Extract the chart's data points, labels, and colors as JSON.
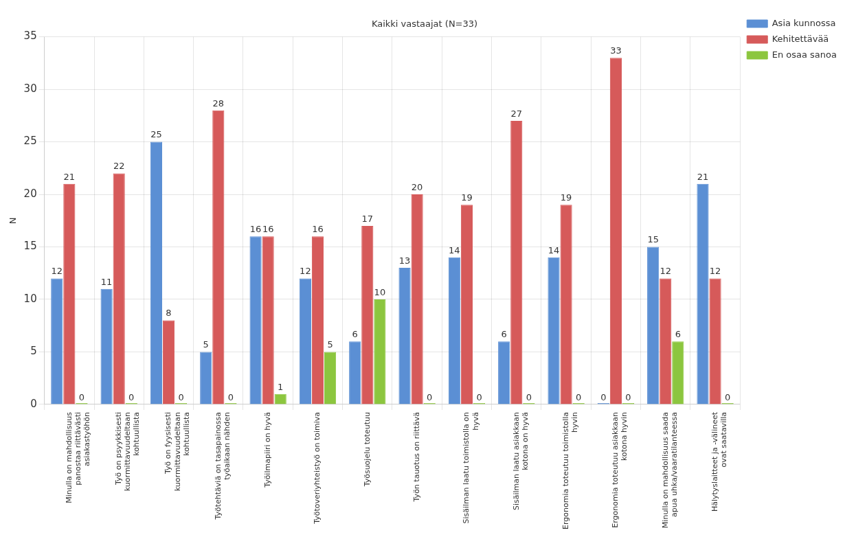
{
  "chart_data": {
    "type": "bar",
    "title": "Kaikki vastaajat (N=33)",
    "ylabel": "N",
    "categories": [
      "Minulla on mahdollisuus panostaa riittävästi asiakastyöhön",
      "Työ on psyykkisesti kuormittavuudeltaan kohtuullista",
      "Työ on fyysisesti kuormittavuudeltaan kohtuullista",
      "Työtehtäviä on tasapainossa työaikaan nähden",
      "Työilmapiiri on hyvä",
      "Työtoveriyhteistyö on toimiva",
      "Työsuojelu toteutuu",
      "Työn tauotus on riittävä",
      "Sisäilman laatu toimistolla on hyvä",
      "Sisäilman laatu asiakkaan kotona on hyvä",
      "Ergonomia toteutuu toimistolla hyvin",
      "Ergonomia toteutuu asiakkaan kotona hyvin",
      "Minulla on mahdollisuus saada apua uhka/vaaratilanteessa",
      "Hälytyslaitteet ja -välineet ovat saatavilla"
    ],
    "series": [
      {
        "name": "Asia kunnossa",
        "color": "#5b8fd4",
        "values": [
          12,
          11,
          25,
          5,
          16,
          12,
          6,
          13,
          14,
          6,
          14,
          0,
          15,
          21
        ]
      },
      {
        "name": "Kehitettävää",
        "color": "#d65a5a",
        "values": [
          21,
          22,
          8,
          28,
          16,
          16,
          17,
          20,
          19,
          27,
          19,
          33,
          12,
          12
        ]
      },
      {
        "name": "En osaa sanoa",
        "color": "#8cc63f",
        "values": [
          0,
          0,
          0,
          0,
          1,
          5,
          10,
          0,
          0,
          0,
          0,
          0,
          6,
          0
        ]
      }
    ],
    "ylim": [
      0,
      35
    ],
    "yticks": [
      0,
      5,
      10,
      15,
      20,
      25,
      30,
      35
    ],
    "grid": true,
    "legend": "top right",
    "data_labels": true
  }
}
